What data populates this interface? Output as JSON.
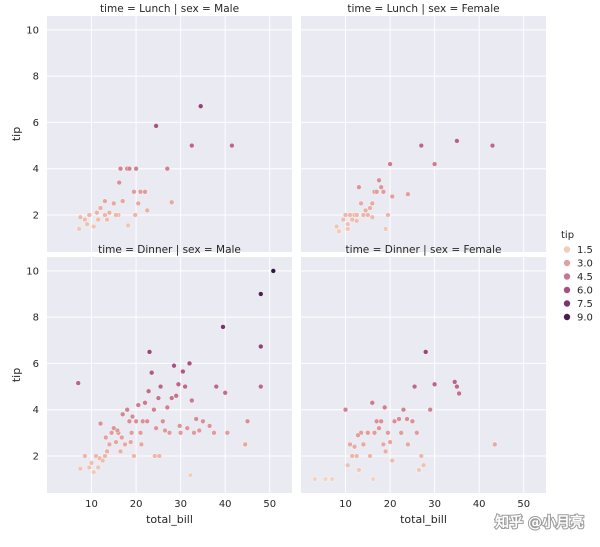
{
  "chart_data": {
    "type": "scatter",
    "x_field": "total_bill",
    "y_field": "tip",
    "hue_field": "tip",
    "xlabel": "total_bill",
    "ylabel": "tip",
    "xlim": [
      0,
      55
    ],
    "ylim": [
      0.4,
      10.6
    ],
    "x_ticks": [
      10,
      20,
      30,
      40,
      50
    ],
    "y_ticks": [
      2,
      4,
      6,
      8,
      10
    ],
    "grid": true,
    "legend": {
      "title": "tip",
      "placement": "right",
      "entries": [
        "1.5",
        "3.0",
        "4.5",
        "6.0",
        "7.5",
        "9.0"
      ],
      "colors": [
        "#f3cbb7",
        "#e1a0a1",
        "#c8768f",
        "#a34f82",
        "#7a3570",
        "#4a1e4f"
      ]
    },
    "hue_range": [
      1.0,
      10.0
    ],
    "colormap": [
      "#f5d2be",
      "#e7a8a0",
      "#d2828f",
      "#b25b86",
      "#8b3a77",
      "#5a2560",
      "#2d1a3e"
    ],
    "panels": [
      {
        "title": "time = Lunch | sex = Male",
        "points": [
          [
            7.5,
            1.9
          ],
          [
            8.5,
            1.8
          ],
          [
            9.5,
            2.0
          ],
          [
            10.5,
            1.5
          ],
          [
            11.2,
            2.1
          ],
          [
            12,
            2.3
          ],
          [
            13,
            2.0
          ],
          [
            13.5,
            1.8
          ],
          [
            14,
            2.1
          ],
          [
            15,
            2.5
          ],
          [
            16,
            2.0
          ],
          [
            16.5,
            4.0
          ],
          [
            16.2,
            3.4
          ],
          [
            17,
            2.6
          ],
          [
            18,
            4.0
          ],
          [
            18.5,
            4.0
          ],
          [
            19.5,
            3.0
          ],
          [
            20,
            4.0
          ],
          [
            20.5,
            2.5
          ],
          [
            21,
            3.0
          ],
          [
            22,
            3.0
          ],
          [
            22.5,
            2.2
          ],
          [
            24.5,
            5.85
          ],
          [
            27,
            4.0
          ],
          [
            28,
            2.55
          ],
          [
            32.5,
            5.0
          ],
          [
            34.5,
            6.7
          ],
          [
            41.5,
            5.0
          ],
          [
            7.2,
            1.4
          ],
          [
            9,
            1.6
          ],
          [
            11.5,
            1.8
          ],
          [
            13,
            2.6
          ],
          [
            15.5,
            2.0
          ],
          [
            18.2,
            1.55
          ],
          [
            19.8,
            2.0
          ]
        ]
      },
      {
        "title": "time = Lunch | sex = Female",
        "points": [
          [
            8,
            1.5
          ],
          [
            8.5,
            1.3
          ],
          [
            9.5,
            1.8
          ],
          [
            10,
            2.0
          ],
          [
            10.5,
            1.6
          ],
          [
            11,
            2.0
          ],
          [
            11.5,
            1.8
          ],
          [
            12,
            2.0
          ],
          [
            12.5,
            2.0
          ],
          [
            13,
            3.2
          ],
          [
            13.5,
            2.5
          ],
          [
            14,
            2.0
          ],
          [
            15,
            2.0
          ],
          [
            15.5,
            2.3
          ],
          [
            16,
            2.5
          ],
          [
            16.5,
            3.0
          ],
          [
            17,
            3.0
          ],
          [
            17.5,
            3.5
          ],
          [
            18,
            3.2
          ],
          [
            18.5,
            3.0
          ],
          [
            19,
            1.4
          ],
          [
            19.5,
            2.0
          ],
          [
            20,
            4.2
          ],
          [
            20.5,
            2.8
          ],
          [
            24,
            2.9
          ],
          [
            27,
            5.0
          ],
          [
            30,
            4.2
          ],
          [
            35,
            5.2
          ],
          [
            43,
            5.0
          ],
          [
            10.5,
            1.4
          ],
          [
            12.5,
            1.75
          ],
          [
            14.5,
            2.2
          ],
          [
            16,
            1.9
          ]
        ]
      },
      {
        "title": "time = Dinner | sex = Male",
        "points": [
          [
            7,
            5.15
          ],
          [
            7.5,
            1.45
          ],
          [
            8.5,
            2.0
          ],
          [
            9.5,
            1.5
          ],
          [
            10,
            1.7
          ],
          [
            10.5,
            1.3
          ],
          [
            11,
            2.0
          ],
          [
            11.5,
            1.5
          ],
          [
            12,
            3.4
          ],
          [
            12.5,
            1.8
          ],
          [
            13,
            2.0
          ],
          [
            13.5,
            2.2
          ],
          [
            14,
            2.5
          ],
          [
            14.5,
            3.0
          ],
          [
            15,
            3.2
          ],
          [
            15.5,
            2.6
          ],
          [
            16,
            3.0
          ],
          [
            16.5,
            2.2
          ],
          [
            17,
            3.8
          ],
          [
            17.5,
            2.5
          ],
          [
            18,
            4.0
          ],
          [
            18.5,
            3.5
          ],
          [
            19,
            3.0
          ],
          [
            19.5,
            2.0
          ],
          [
            20,
            3.5
          ],
          [
            20.5,
            4.2
          ],
          [
            21,
            3.0
          ],
          [
            21.5,
            3.5
          ],
          [
            22,
            4.3
          ],
          [
            22.5,
            3.5
          ],
          [
            23,
            6.5
          ],
          [
            23.5,
            5.6
          ],
          [
            24,
            4.0
          ],
          [
            24.5,
            3.2
          ],
          [
            25,
            4.5
          ],
          [
            25.5,
            5.0
          ],
          [
            26,
            3.5
          ],
          [
            27,
            4.1
          ],
          [
            27.5,
            3.0
          ],
          [
            28,
            4.5
          ],
          [
            28.5,
            5.9
          ],
          [
            29,
            4.6
          ],
          [
            29.5,
            5.1
          ],
          [
            30,
            3.0
          ],
          [
            30.5,
            5.65
          ],
          [
            31,
            5.0
          ],
          [
            31.5,
            3.2
          ],
          [
            32,
            6.0
          ],
          [
            32.5,
            4.4
          ],
          [
            33,
            3.0
          ],
          [
            33.5,
            3.6
          ],
          [
            35,
            3.5
          ],
          [
            37.5,
            3.0
          ],
          [
            38,
            5.0
          ],
          [
            39.5,
            7.58
          ],
          [
            40,
            4.73
          ],
          [
            40.5,
            3.0
          ],
          [
            45,
            3.5
          ],
          [
            48,
            9.0
          ],
          [
            48,
            6.73
          ],
          [
            48,
            5.0
          ],
          [
            50.8,
            10.0
          ],
          [
            16.8,
            2.8
          ],
          [
            18.8,
            2.6
          ],
          [
            21.2,
            2.5
          ],
          [
            24.2,
            2.0
          ],
          [
            26.5,
            3.1
          ],
          [
            11.8,
            1.9
          ],
          [
            13.2,
            2.8
          ],
          [
            15.8,
            3.1
          ],
          [
            19.2,
            3.7
          ],
          [
            22.8,
            4.8
          ],
          [
            25.2,
            2.0
          ],
          [
            29.8,
            3.3
          ],
          [
            32.2,
            1.17
          ],
          [
            34.2,
            3.1
          ],
          [
            36.5,
            3.3
          ],
          [
            44.5,
            2.5
          ]
        ]
      },
      {
        "title": "time = Dinner | sex = Female",
        "points": [
          [
            3.1,
            1.0
          ],
          [
            5.5,
            1.0
          ],
          [
            7,
            1.0
          ],
          [
            10,
            4.0
          ],
          [
            10.5,
            1.6
          ],
          [
            11,
            2.5
          ],
          [
            11.5,
            2.0
          ],
          [
            12,
            2.4
          ],
          [
            12.5,
            2.0
          ],
          [
            13,
            1.4
          ],
          [
            13.5,
            3.0
          ],
          [
            14,
            2.5
          ],
          [
            15,
            3.0
          ],
          [
            15.5,
            2.0
          ],
          [
            16,
            4.3
          ],
          [
            16.5,
            3.0
          ],
          [
            17,
            3.5
          ],
          [
            17.5,
            3.2
          ],
          [
            18,
            3.5
          ],
          [
            18.5,
            2.5
          ],
          [
            19,
            2.2
          ],
          [
            19.5,
            3.0
          ],
          [
            20,
            2.6
          ],
          [
            21,
            3.5
          ],
          [
            22,
            3.6
          ],
          [
            22.5,
            3.0
          ],
          [
            23,
            4.0
          ],
          [
            24,
            2.5
          ],
          [
            25,
            3.5
          ],
          [
            25.5,
            5.0
          ],
          [
            26,
            3.0
          ],
          [
            27,
            2.0
          ],
          [
            27.5,
            1.6
          ],
          [
            28,
            6.5
          ],
          [
            29,
            4.0
          ],
          [
            30,
            5.1
          ],
          [
            34.5,
            5.2
          ],
          [
            35,
            5.0
          ],
          [
            35.5,
            4.7
          ],
          [
            43.5,
            2.5
          ],
          [
            16.2,
            1.0
          ],
          [
            20.5,
            1.8
          ],
          [
            26.5,
            1.4
          ],
          [
            12.8,
            2.9
          ],
          [
            18.8,
            4.1
          ],
          [
            23.8,
            3.6
          ]
        ]
      }
    ]
  },
  "watermark": "知乎 @小月亮"
}
